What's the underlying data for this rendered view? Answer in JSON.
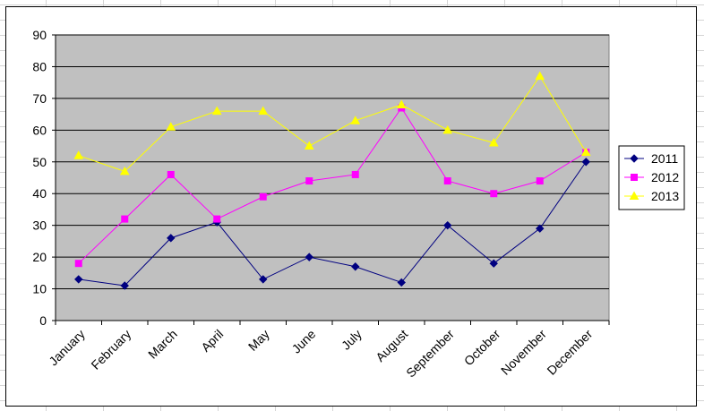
{
  "chart_data": {
    "type": "line",
    "title": "",
    "xlabel": "",
    "ylabel": "",
    "ylim": [
      0,
      90
    ],
    "yticks": [
      0,
      10,
      20,
      30,
      40,
      50,
      60,
      70,
      80,
      90
    ],
    "grid": true,
    "legend_position": "right",
    "plot_background": "#c0c0c0",
    "categories": [
      "January",
      "February",
      "March",
      "April",
      "May",
      "June",
      "July",
      "August",
      "September",
      "October",
      "November",
      "December"
    ],
    "series": [
      {
        "name": "2011",
        "color": "#000080",
        "marker": "diamond",
        "values": [
          13,
          11,
          26,
          31,
          13,
          20,
          17,
          12,
          30,
          18,
          29,
          50
        ]
      },
      {
        "name": "2012",
        "color": "#ff00ff",
        "marker": "square",
        "values": [
          18,
          32,
          46,
          32,
          39,
          44,
          46,
          67,
          44,
          40,
          44,
          53
        ]
      },
      {
        "name": "2013",
        "color": "#ffff00",
        "marker": "triangle",
        "values": [
          52,
          47,
          61,
          66,
          66,
          55,
          63,
          68,
          60,
          56,
          77,
          53
        ]
      }
    ]
  }
}
